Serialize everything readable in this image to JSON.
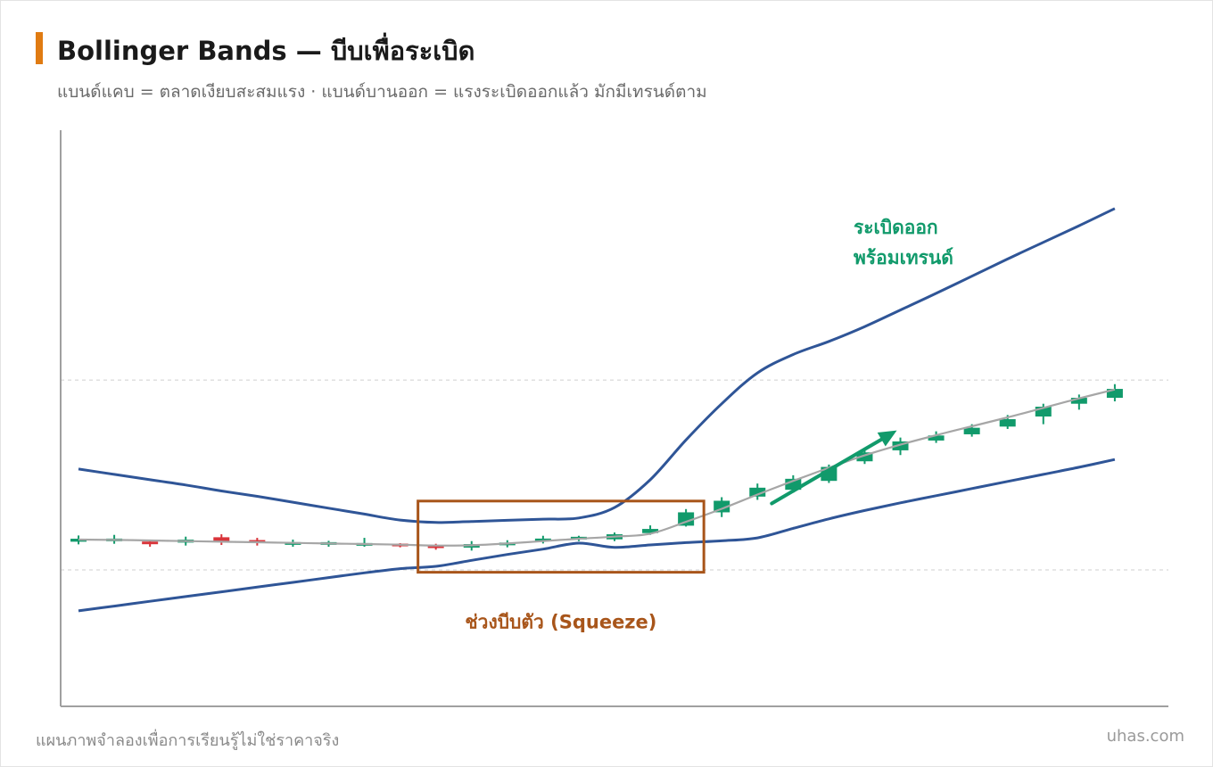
{
  "header": {
    "title": "Bollinger Bands — บีบเพื่อระเบิด",
    "subtitle": "แบนด์แคบ = ตลาดเงียบสะสมแรง · แบนด์บานออก = แรงระเบิดออกแล้ว มักมีเทรนด์ตาม"
  },
  "footer": {
    "note": "แผนภาพจำลองเพื่อการเรียนรู้ไม่ใช่ราคาจริง",
    "brand": "uhas.com"
  },
  "colors": {
    "band": "#2f5597",
    "middle": "#a6a6a6",
    "up": "#119a6b",
    "down": "#d9343a",
    "squeeze": "#a8551a",
    "breakout": "#119a6b",
    "axis": "#a0a0a0",
    "grid": "#cfcfcf"
  },
  "chart_data": {
    "type": "candlestick",
    "x": [
      1,
      2,
      3,
      4,
      5,
      6,
      7,
      8,
      9,
      10,
      11,
      12,
      13,
      14,
      15,
      16,
      17,
      18,
      19,
      20,
      21,
      22,
      23,
      24,
      25,
      26,
      27,
      28,
      29,
      30
    ],
    "candles": [
      {
        "open": 99.75,
        "close": 100.25,
        "high": 100.8,
        "low": 99.3
      },
      {
        "open": 100.0,
        "close": 100.1,
        "high": 100.9,
        "low": 99.4
      },
      {
        "open": 99.7,
        "close": 99.4,
        "high": 100.0,
        "low": 98.9
      },
      {
        "open": 99.6,
        "close": 100.1,
        "high": 100.6,
        "low": 99.1
      },
      {
        "open": 100.5,
        "close": 99.85,
        "high": 101.0,
        "low": 99.2
      },
      {
        "open": 100.0,
        "close": 99.6,
        "high": 100.4,
        "low": 99.1
      },
      {
        "open": 99.4,
        "close": 99.5,
        "high": 100.1,
        "low": 98.9
      },
      {
        "open": 99.4,
        "close": 99.5,
        "high": 99.9,
        "low": 98.9
      },
      {
        "open": 99.1,
        "close": 99.5,
        "high": 100.4,
        "low": 98.9
      },
      {
        "open": 99.25,
        "close": 99.15,
        "high": 99.5,
        "low": 98.8
      },
      {
        "open": 98.95,
        "close": 98.85,
        "high": 99.4,
        "low": 98.4
      },
      {
        "open": 98.75,
        "close": 99.35,
        "high": 99.85,
        "low": 98.25
      },
      {
        "open": 99.15,
        "close": 99.6,
        "high": 100.0,
        "low": 98.8
      },
      {
        "open": 99.85,
        "close": 100.25,
        "high": 100.75,
        "low": 99.45
      },
      {
        "open": 100.35,
        "close": 100.35,
        "high": 100.75,
        "low": 99.85
      },
      {
        "open": 100.15,
        "close": 101.0,
        "high": 101.3,
        "low": 99.85
      },
      {
        "open": 101.2,
        "close": 101.9,
        "high": 102.5,
        "low": 100.9
      },
      {
        "open": 102.45,
        "close": 104.7,
        "high": 105.25,
        "low": 102.3
      },
      {
        "open": 104.7,
        "close": 106.65,
        "high": 107.25,
        "low": 103.9
      },
      {
        "open": 107.35,
        "close": 108.85,
        "high": 109.55,
        "low": 106.8
      },
      {
        "open": 108.5,
        "close": 110.35,
        "high": 110.95,
        "low": 108.0
      },
      {
        "open": 110.0,
        "close": 112.35,
        "high": 112.75,
        "low": 109.65
      },
      {
        "open": 113.3,
        "close": 114.8,
        "high": 115.35,
        "low": 112.85
      },
      {
        "open": 115.15,
        "close": 116.65,
        "high": 117.3,
        "low": 114.35
      },
      {
        "open": 116.8,
        "close": 117.65,
        "high": 118.35,
        "low": 116.4
      },
      {
        "open": 117.85,
        "close": 118.95,
        "high": 119.55,
        "low": 117.45
      },
      {
        "open": 119.15,
        "close": 120.4,
        "high": 121.1,
        "low": 118.75
      },
      {
        "open": 120.85,
        "close": 122.5,
        "high": 123.0,
        "low": 119.55
      },
      {
        "open": 123.0,
        "close": 124.0,
        "high": 124.55,
        "low": 122.0
      },
      {
        "open": 124.0,
        "close": 125.5,
        "high": 126.3,
        "low": 123.4
      }
    ],
    "middle": [
      100.1,
      100.05,
      99.95,
      99.85,
      99.75,
      99.65,
      99.55,
      99.45,
      99.35,
      99.25,
      99.1,
      99.15,
      99.45,
      99.85,
      100.25,
      100.6,
      101.1,
      103.1,
      105.3,
      107.7,
      110.0,
      112.2,
      114.3,
      116.1,
      117.7,
      119.2,
      120.7,
      122.3,
      123.9,
      125.4
    ],
    "upper_band": [
      112.0,
      111.1,
      110.2,
      109.3,
      108.3,
      107.4,
      106.4,
      105.4,
      104.4,
      103.4,
      103.0,
      103.15,
      103.35,
      103.55,
      103.75,
      105.5,
      110.2,
      116.9,
      123.0,
      128.2,
      131.3,
      133.5,
      136.0,
      138.8,
      141.6,
      144.5,
      147.4,
      150.2,
      153.0,
      155.9
    ],
    "lower_band": [
      88.1,
      88.9,
      89.7,
      90.5,
      91.3,
      92.1,
      92.9,
      93.7,
      94.5,
      95.2,
      95.6,
      96.6,
      97.6,
      98.5,
      99.5,
      98.8,
      99.2,
      99.6,
      99.9,
      100.4,
      102.0,
      103.6,
      105.0,
      106.3,
      107.5,
      108.7,
      109.9,
      111.1,
      112.3,
      113.6
    ],
    "ylim": [
      72,
      170
    ],
    "xlim": [
      0.5,
      31.5
    ],
    "grid": "horizontal-dashed",
    "annotations": {
      "squeeze_label": "ช่วงบีบตัว (Squeeze)",
      "squeeze_range": {
        "x": [
          10.5,
          18.5
        ],
        "y": [
          94.6,
          106.6
        ]
      },
      "breakout_label_line1": "ระเบิดออก",
      "breakout_label_line2": "พร้อมเทรนด์",
      "breakout_arrow": {
        "from": [
          20.4,
          106.2
        ],
        "to": [
          23.9,
          118.5
        ]
      }
    }
  }
}
